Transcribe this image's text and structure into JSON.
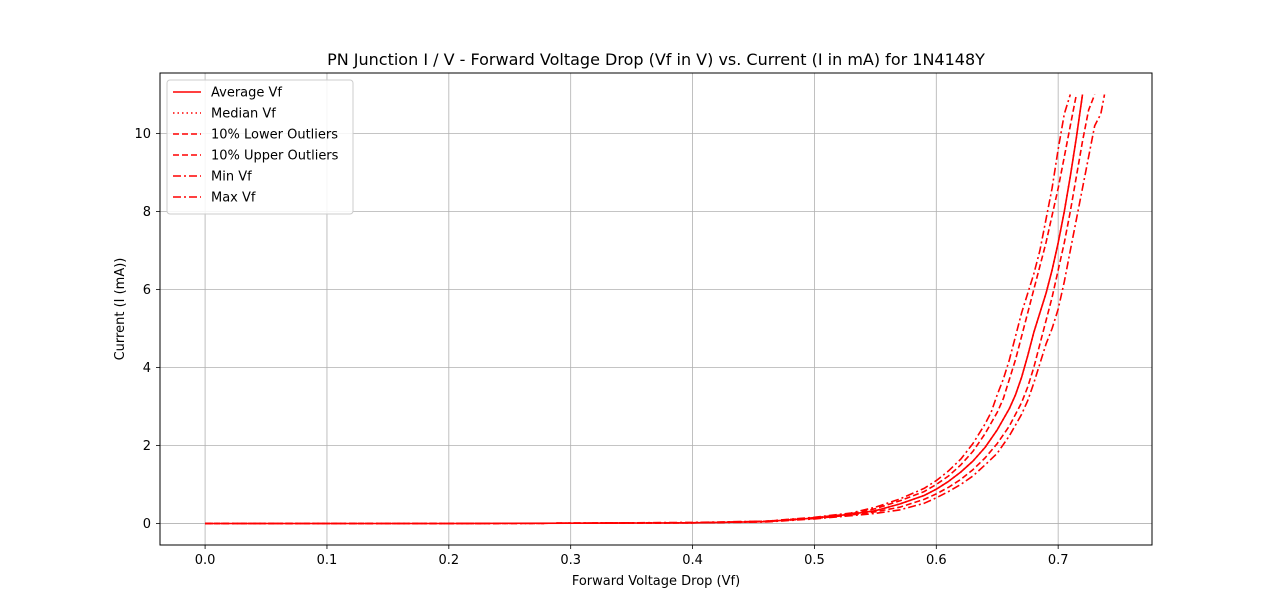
{
  "chart_data": {
    "type": "line",
    "title": "PN Junction I / V - Forward Voltage Drop (Vf in V) vs. Current (I in mA) for 1N4148Y",
    "xlabel": "Forward Voltage Drop (Vf)",
    "ylabel": "Current (I (mA))",
    "xlim": [
      -0.037,
      0.777
    ],
    "ylim": [
      -0.55,
      11.55
    ],
    "xticks": [
      0.0,
      0.1,
      0.2,
      0.3,
      0.4,
      0.5,
      0.6,
      0.7
    ],
    "xtick_labels": [
      "0.0",
      "0.1",
      "0.2",
      "0.3",
      "0.4",
      "0.5",
      "0.6",
      "0.7"
    ],
    "yticks": [
      0,
      2,
      4,
      6,
      8,
      10
    ],
    "ytick_labels": [
      "0",
      "2",
      "4",
      "6",
      "8",
      "10"
    ],
    "grid": true,
    "legend_position": "top-left",
    "line_color": "#ff0000",
    "series": [
      {
        "name": "Average Vf",
        "style": "solid",
        "x": [
          0.0,
          0.1,
          0.2,
          0.3,
          0.4,
          0.46,
          0.5,
          0.53,
          0.55,
          0.57,
          0.59,
          0.6,
          0.61,
          0.62,
          0.63,
          0.64,
          0.65,
          0.66,
          0.665,
          0.67,
          0.675,
          0.68,
          0.685,
          0.69,
          0.695,
          0.7,
          0.705,
          0.71,
          0.715,
          0.72
        ],
        "y": [
          0.0,
          0.0,
          0.0,
          0.01,
          0.02,
          0.05,
          0.14,
          0.24,
          0.33,
          0.5,
          0.72,
          0.88,
          1.08,
          1.32,
          1.6,
          1.95,
          2.4,
          2.95,
          3.3,
          3.75,
          4.3,
          4.9,
          5.4,
          5.9,
          6.5,
          7.2,
          8.0,
          8.9,
          9.9,
          11.0
        ]
      },
      {
        "name": "Median Vf",
        "style": "dotted",
        "x": [
          0.0,
          0.1,
          0.2,
          0.3,
          0.4,
          0.46,
          0.5,
          0.53,
          0.55,
          0.57,
          0.59,
          0.6,
          0.61,
          0.62,
          0.63,
          0.64,
          0.65,
          0.66,
          0.665,
          0.67,
          0.675,
          0.68,
          0.685,
          0.69,
          0.695,
          0.7,
          0.705,
          0.71,
          0.715,
          0.72
        ],
        "y": [
          0.0,
          0.0,
          0.0,
          0.01,
          0.02,
          0.05,
          0.14,
          0.24,
          0.33,
          0.5,
          0.72,
          0.88,
          1.08,
          1.32,
          1.6,
          1.95,
          2.4,
          2.95,
          3.3,
          3.75,
          4.3,
          4.9,
          5.4,
          5.9,
          6.5,
          7.2,
          8.0,
          8.9,
          9.9,
          11.0
        ]
      },
      {
        "name": "10% Lower Outliers",
        "style": "dashed",
        "x": [
          0.0,
          0.1,
          0.2,
          0.3,
          0.4,
          0.46,
          0.5,
          0.53,
          0.55,
          0.57,
          0.59,
          0.6,
          0.61,
          0.62,
          0.63,
          0.64,
          0.65,
          0.655,
          0.66,
          0.665,
          0.67,
          0.675,
          0.68,
          0.685,
          0.69,
          0.695,
          0.7,
          0.705,
          0.71,
          0.715
        ],
        "y": [
          0.0,
          0.0,
          0.0,
          0.01,
          0.02,
          0.06,
          0.15,
          0.25,
          0.38,
          0.58,
          0.82,
          1.0,
          1.22,
          1.5,
          1.85,
          2.3,
          2.85,
          3.2,
          3.7,
          4.2,
          4.8,
          5.4,
          6.0,
          6.6,
          7.2,
          7.9,
          8.6,
          9.4,
          10.2,
          11.0
        ]
      },
      {
        "name": "10% Upper Outliers",
        "style": "dashed",
        "x": [
          0.0,
          0.1,
          0.2,
          0.3,
          0.4,
          0.46,
          0.5,
          0.53,
          0.55,
          0.57,
          0.59,
          0.6,
          0.61,
          0.62,
          0.63,
          0.64,
          0.65,
          0.66,
          0.67,
          0.675,
          0.68,
          0.685,
          0.69,
          0.695,
          0.7,
          0.705,
          0.71,
          0.715,
          0.72,
          0.725,
          0.73
        ],
        "y": [
          0.0,
          0.0,
          0.0,
          0.01,
          0.02,
          0.05,
          0.13,
          0.22,
          0.3,
          0.42,
          0.62,
          0.76,
          0.93,
          1.13,
          1.38,
          1.68,
          2.05,
          2.5,
          3.1,
          3.5,
          4.0,
          4.6,
          5.2,
          5.8,
          6.5,
          7.2,
          8.0,
          8.9,
          9.8,
          10.6,
          11.0
        ]
      },
      {
        "name": "Min Vf",
        "style": "dashdot",
        "x": [
          0.0,
          0.1,
          0.2,
          0.3,
          0.4,
          0.46,
          0.5,
          0.53,
          0.55,
          0.57,
          0.59,
          0.6,
          0.61,
          0.62,
          0.63,
          0.64,
          0.645,
          0.65,
          0.655,
          0.66,
          0.665,
          0.67,
          0.675,
          0.68,
          0.685,
          0.69,
          0.695,
          0.7,
          0.705,
          0.71
        ],
        "y": [
          0.0,
          0.0,
          0.0,
          0.01,
          0.03,
          0.06,
          0.16,
          0.27,
          0.42,
          0.63,
          0.9,
          1.1,
          1.35,
          1.65,
          2.05,
          2.55,
          2.85,
          3.3,
          3.7,
          4.2,
          4.8,
          5.4,
          5.9,
          6.4,
          7.0,
          7.8,
          8.6,
          9.6,
          10.5,
          11.0
        ]
      },
      {
        "name": "Max Vf",
        "style": "dashdot",
        "x": [
          0.0,
          0.1,
          0.2,
          0.3,
          0.4,
          0.46,
          0.5,
          0.53,
          0.55,
          0.57,
          0.59,
          0.6,
          0.61,
          0.62,
          0.63,
          0.64,
          0.65,
          0.66,
          0.67,
          0.675,
          0.68,
          0.685,
          0.69,
          0.695,
          0.7,
          0.705,
          0.71,
          0.715,
          0.72,
          0.725,
          0.73,
          0.735,
          0.738
        ],
        "y": [
          0.0,
          0.0,
          0.0,
          0.01,
          0.02,
          0.04,
          0.12,
          0.2,
          0.26,
          0.35,
          0.52,
          0.66,
          0.82,
          1.0,
          1.22,
          1.5,
          1.8,
          2.25,
          2.8,
          3.15,
          3.6,
          4.1,
          4.6,
          5.0,
          5.5,
          6.2,
          7.0,
          7.8,
          8.6,
          9.4,
          10.2,
          10.5,
          11.0
        ]
      }
    ]
  }
}
